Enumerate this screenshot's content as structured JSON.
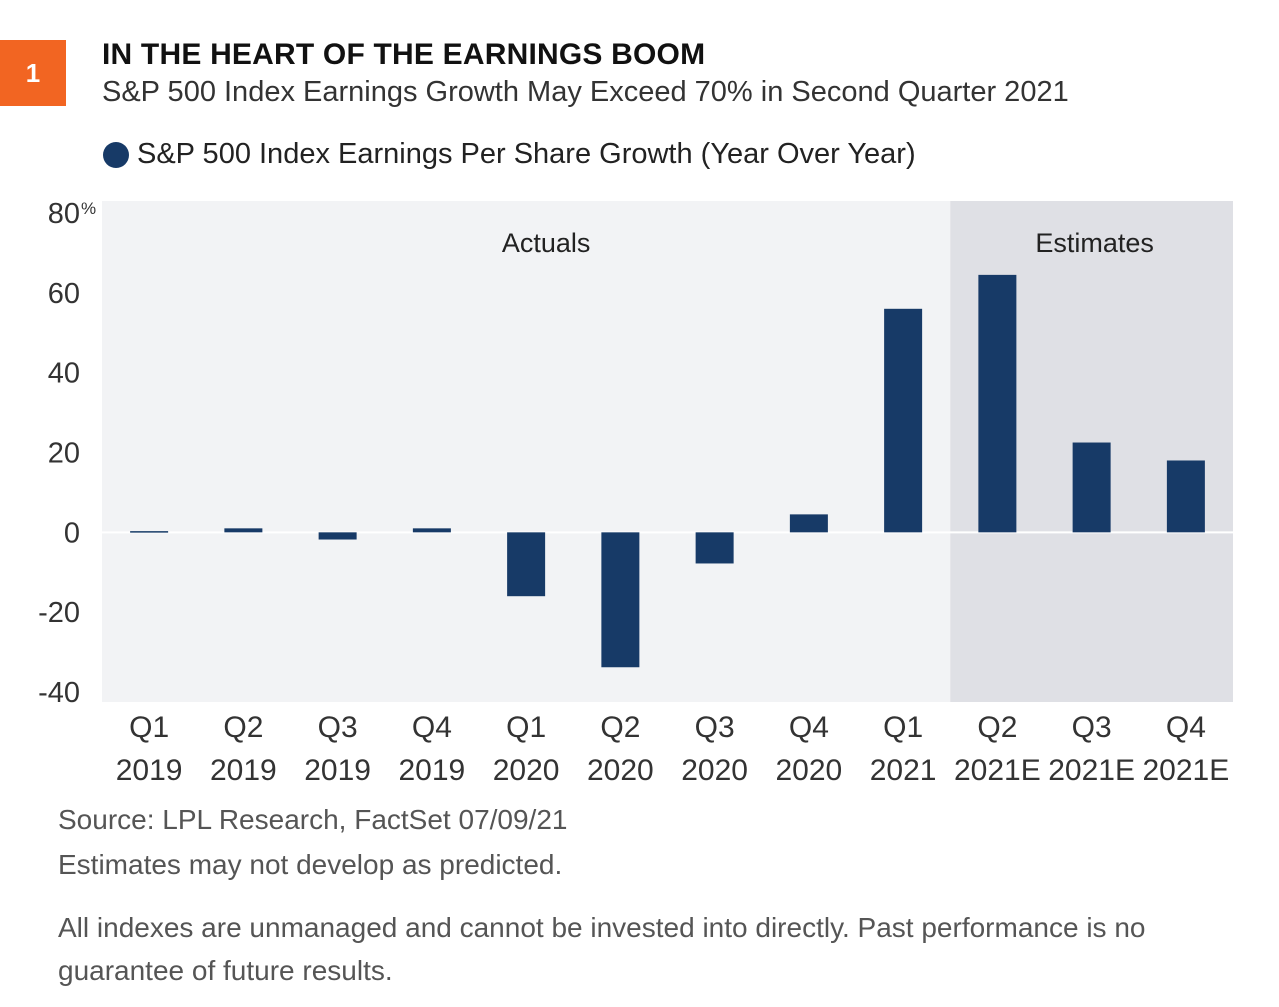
{
  "badge": "1",
  "title": "IN THE HEART OF THE EARNINGS BOOM",
  "subtitle": "S&P 500 Index Earnings Growth May Exceed 70% in Second Quarter 2021",
  "notes": {
    "source": "Source: LPL Research, FactSet  07/09/21",
    "estimates": "Estimates may not develop as predicted.",
    "disclaimer": "All indexes are unmanaged and cannot be invested into directly. Past performance is no guarantee of future results."
  },
  "colors": {
    "accent": "#f26522",
    "bar": "#173a67",
    "actuals_bg": "#f2f3f5",
    "estimates_bg": "#dfe0e5"
  },
  "chart_data": {
    "type": "bar",
    "title": "IN THE HEART OF THE EARNINGS BOOM",
    "subtitle": "S&P 500 Index Earnings Growth May Exceed 70% in Second Quarter 2021",
    "categories": [
      [
        "Q1",
        "2019"
      ],
      [
        "Q2",
        "2019"
      ],
      [
        "Q3",
        "2019"
      ],
      [
        "Q4",
        "2019"
      ],
      [
        "Q1",
        "2020"
      ],
      [
        "Q2",
        "2020"
      ],
      [
        "Q3",
        "2020"
      ],
      [
        "Q4",
        "2020"
      ],
      [
        "Q1",
        "2021"
      ],
      [
        "Q2",
        "2021E"
      ],
      [
        "Q3",
        "2021E"
      ],
      [
        "Q4",
        "2021E"
      ]
    ],
    "series": [
      {
        "name": "S&P 500 Index Earnings Per Share Growth (Year Over Year)",
        "values": [
          0.3,
          1.0,
          -1.8,
          1.0,
          -16.0,
          -33.8,
          -7.8,
          4.5,
          56.0,
          64.5,
          22.5,
          18.0
        ]
      }
    ],
    "ylim": [
      -40,
      80
    ],
    "yticks": [
      80,
      60,
      40,
      20,
      0,
      -20,
      -40
    ],
    "ytick_labels": [
      "80",
      "60",
      "40",
      "20",
      "0",
      "-20",
      "-40"
    ],
    "y_unit": "%",
    "regions": [
      {
        "label": "Actuals",
        "from_index": 0,
        "to_index": 8
      },
      {
        "label": "Estimates",
        "from_index": 9,
        "to_index": 11
      }
    ],
    "legend": "top-left",
    "grid": false
  }
}
